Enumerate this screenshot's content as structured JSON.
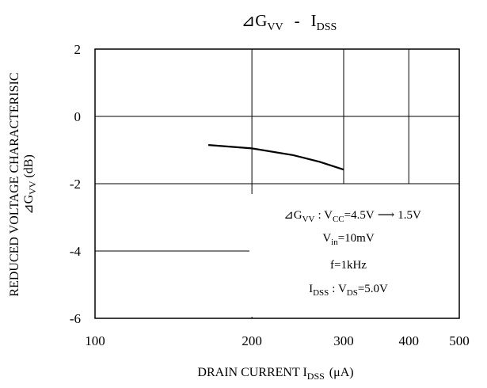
{
  "chart_data": {
    "type": "line",
    "title": "⊿G",
    "title_sub": "VV",
    "title_sep": "-",
    "title_right": "I",
    "title_right_sub": "DSS",
    "x_scale": "log",
    "xlim": [
      100,
      500
    ],
    "ylim": [
      -6,
      2
    ],
    "x_ticks": [
      100,
      200,
      300,
      400,
      500
    ],
    "x_tick_labels": [
      "100",
      "200",
      "300",
      "400",
      "500"
    ],
    "y_ticks": [
      2,
      0,
      -2,
      -4,
      -6
    ],
    "y_tick_labels": [
      "2",
      "0",
      "-2",
      "-4",
      "-6"
    ],
    "grid": "partial",
    "xlabel": "DRAIN CURRENT I",
    "xlabel_sub": "DSS",
    "xlabel_unit": "(μA)",
    "ylabel_line1": "REDUCED VOLTAGE CHARACTERISIC",
    "ylabel_line2": "⊿G",
    "ylabel_line2_sub": "VV",
    "ylabel_line2_unit": "(dB)",
    "series": [
      {
        "x": [
          165,
          200,
          240,
          270,
          300
        ],
        "y": [
          -0.85,
          -0.95,
          -1.15,
          -1.35,
          -1.58
        ]
      }
    ],
    "annotation": {
      "line1_prefix": "⊿G",
      "line1_sub1": "VV",
      "line1_mid": ": V",
      "line1_sub2": "CC",
      "line1_value": "=4.5V",
      "line1_arrow": "⟶",
      "line1_end": "1.5V",
      "line2_prefix": "V",
      "line2_sub": "in",
      "line2_value": "=10mV",
      "line3": "f=1kHz",
      "line4_prefix": "I",
      "line4_sub1": "DSS",
      "line4_mid": ": V",
      "line4_sub2": "DS",
      "line4_value": "=5.0V"
    }
  }
}
